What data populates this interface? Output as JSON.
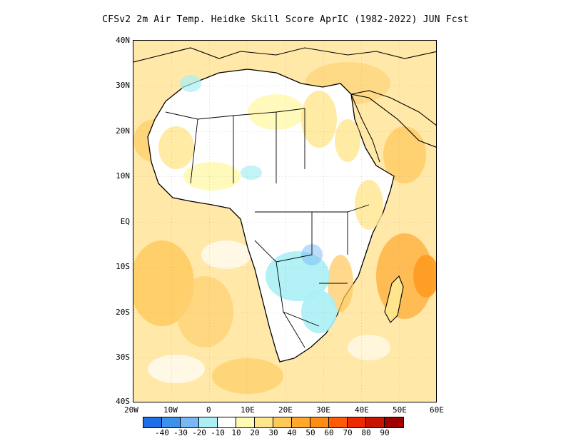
{
  "title": "CFSv2  2m Air Temp. Heidke Skill Score AprIC (1982-2022) JUN Fcst",
  "axes": {
    "lat_labels": [
      "40N",
      "30N",
      "20N",
      "10N",
      "EQ",
      "10S",
      "20S",
      "30S",
      "40S"
    ],
    "lon_labels": [
      "20W",
      "10W",
      "0",
      "10E",
      "20E",
      "30E",
      "40E",
      "50E",
      "60E"
    ],
    "lat_range": [
      -40,
      40
    ],
    "lon_range": [
      -20,
      60
    ]
  },
  "colorbar": {
    "colors": [
      "#1e6ee6",
      "#3c91eb",
      "#78b9f5",
      "#aaf0f5",
      "#ffffff",
      "#fffab4",
      "#ffe68c",
      "#ffc85a",
      "#ffa82d",
      "#ff8c14",
      "#ff5a0a",
      "#ee2800",
      "#c81400",
      "#a00000"
    ],
    "labels": [
      "-40",
      "-30",
      "-20",
      "-10",
      "10",
      "20",
      "30",
      "40",
      "50",
      "60",
      "70",
      "80",
      "90"
    ]
  },
  "map": {
    "region": "Africa",
    "ocean_color": "#ffe8a8",
    "land_color": "#ffffff",
    "cool_color": "#aaf0f5",
    "warm_color": "#ffc85a"
  }
}
